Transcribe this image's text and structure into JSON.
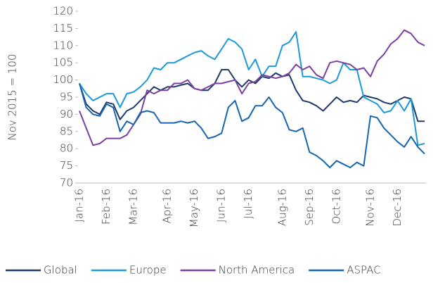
{
  "chart_data": {
    "type": "line",
    "ylabel": "Nov 2015 = 100",
    "categories": [
      "Jan-16",
      null,
      null,
      null,
      "Feb-16",
      null,
      null,
      null,
      "Mar-16",
      null,
      null,
      null,
      null,
      "Apr-16",
      null,
      null,
      null,
      "May-16",
      null,
      null,
      null,
      "Jun-16",
      null,
      null,
      null,
      "Jul-16",
      null,
      null,
      null,
      null,
      "Aug-16",
      null,
      null,
      null,
      "Sep-16",
      null,
      null,
      null,
      "Oct-16",
      null,
      null,
      null,
      null,
      "Nov-16",
      null,
      null,
      null,
      "Dec-16",
      null,
      null,
      null,
      null
    ],
    "series": [
      {
        "name": "Global",
        "color": "#1f3a6e",
        "values": [
          99,
          93,
          91,
          90,
          93.5,
          93,
          88.5,
          91,
          92,
          94,
          96,
          98,
          97,
          98,
          98,
          98.5,
          99,
          97.5,
          97,
          97,
          99,
          103,
          103,
          100,
          98,
          100,
          99,
          101,
          100.5,
          102,
          101,
          101.5,
          97,
          94,
          93.5,
          92.5,
          91,
          93,
          95,
          93.5,
          94,
          93.5,
          95.5,
          95,
          94.5,
          93.5,
          93,
          94,
          95,
          94.5,
          88,
          88
        ]
      },
      {
        "name": "Europe",
        "color": "#1a9ad6",
        "values": [
          99,
          96,
          94,
          95,
          96,
          96,
          92,
          96,
          96.5,
          98,
          100,
          103.5,
          103,
          105,
          105,
          106,
          107,
          108,
          108.5,
          107,
          106,
          109,
          112,
          111,
          109,
          103,
          106,
          101,
          104,
          104,
          110,
          111,
          114,
          101,
          101,
          100.5,
          100,
          99,
          100,
          105,
          103,
          103,
          95,
          94,
          93,
          90.5,
          91,
          94,
          91,
          94.5,
          81,
          81.5
        ]
      },
      {
        "name": "North America",
        "color": "#7b3fa0",
        "values": [
          91,
          86,
          81,
          81.5,
          83,
          83,
          83,
          84,
          87,
          90,
          97,
          96,
          97,
          97,
          99,
          99,
          100,
          97.5,
          97,
          98,
          99,
          99,
          99.5,
          100,
          96,
          99,
          99.5,
          101.5,
          101,
          100.5,
          101,
          102,
          104.5,
          103,
          104,
          101.5,
          100.5,
          105,
          105.5,
          105,
          104.5,
          103,
          103.5,
          101,
          105.5,
          107.5,
          110.5,
          112,
          114.5,
          113.5,
          111,
          110
        ]
      },
      {
        "name": "ASPAC",
        "color": "#1565b0",
        "values": [
          99,
          92,
          90,
          89.5,
          93,
          92,
          85,
          88,
          87,
          90.5,
          91,
          90.5,
          87.5,
          87.5,
          87.5,
          88,
          87.5,
          88,
          86,
          83,
          83.5,
          84.5,
          92,
          94,
          88,
          89,
          92.5,
          92.5,
          95,
          92,
          90.5,
          85.5,
          85,
          86,
          79,
          78,
          76.5,
          74.5,
          76.5,
          75.5,
          74.5,
          76,
          75,
          89.5,
          89,
          86,
          84,
          82,
          80.5,
          83.5,
          80.5,
          78.5
        ]
      }
    ],
    "ylim": [
      70,
      120
    ],
    "yticks": [
      70,
      75,
      80,
      85,
      90,
      95,
      100,
      105,
      110,
      115,
      120
    ],
    "legend": "bottom"
  }
}
